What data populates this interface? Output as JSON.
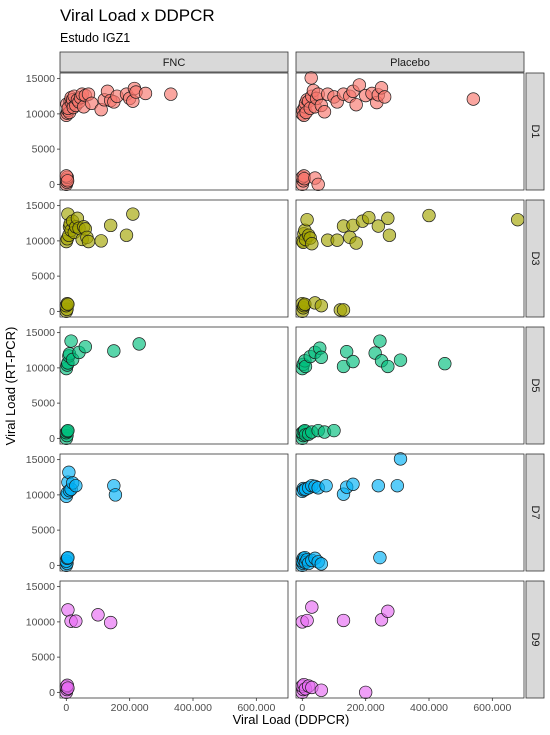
{
  "chart_data": {
    "type": "scatter",
    "title": "Viral Load x DDPCR",
    "subtitle": "Estudo IGZ1",
    "xlabel": "Viral Load (DDPCR)",
    "ylabel": "Viral Load (RT-PCR)",
    "xlim": [
      -20000,
      700000
    ],
    "ylim": [
      -800,
      15800
    ],
    "x_ticks": [
      0,
      200000,
      400000,
      600000
    ],
    "x_tick_labels": [
      "0",
      "200.000",
      "400.000",
      "600.000"
    ],
    "y_ticks": [
      0,
      5000,
      10000,
      15000
    ],
    "y_tick_labels": [
      "0",
      "5000",
      "10000",
      "15000"
    ],
    "columns": [
      "FNC",
      "Placebo"
    ],
    "rows": [
      {
        "label": "D1",
        "color": "#F8766D"
      },
      {
        "label": "D3",
        "color": "#A3A500"
      },
      {
        "label": "D5",
        "color": "#00BF7D"
      },
      {
        "label": "D7",
        "color": "#00B0F6"
      },
      {
        "label": "D9",
        "color": "#E76BF3"
      }
    ],
    "grid": false,
    "legend": "none",
    "panels": [
      {
        "row": "D1",
        "column": "FNC",
        "points": [
          [
            0,
            0
          ],
          [
            2000,
            300
          ],
          [
            1000,
            700
          ],
          [
            3000,
            1000
          ],
          [
            0,
            1200
          ],
          [
            4000,
            500
          ],
          [
            0,
            9800
          ],
          [
            3000,
            10100
          ],
          [
            5000,
            10500
          ],
          [
            8000,
            11000
          ],
          [
            2000,
            11400
          ],
          [
            10000,
            10200
          ],
          [
            12000,
            11800
          ],
          [
            15000,
            12300
          ],
          [
            6000,
            10800
          ],
          [
            18000,
            11500
          ],
          [
            20000,
            12000
          ],
          [
            22000,
            10900
          ],
          [
            25000,
            12500
          ],
          [
            30000,
            11200
          ],
          [
            35000,
            12000
          ],
          [
            40000,
            11700
          ],
          [
            45000,
            12300
          ],
          [
            50000,
            12800
          ],
          [
            55000,
            11000
          ],
          [
            60000,
            12600
          ],
          [
            70000,
            12800
          ],
          [
            80000,
            11500
          ],
          [
            110000,
            10600
          ],
          [
            120000,
            12000
          ],
          [
            130000,
            13200
          ],
          [
            140000,
            11900
          ],
          [
            150000,
            11700
          ],
          [
            160000,
            12500
          ],
          [
            190000,
            12800
          ],
          [
            200000,
            12200
          ],
          [
            210000,
            11800
          ],
          [
            215000,
            13600
          ],
          [
            220000,
            13100
          ],
          [
            250000,
            12900
          ],
          [
            330000,
            12800
          ]
        ]
      },
      {
        "row": "D1",
        "column": "Placebo",
        "points": [
          [
            0,
            0
          ],
          [
            3000,
            500
          ],
          [
            0,
            1000
          ],
          [
            5000,
            1200
          ],
          [
            6000,
            800
          ],
          [
            40000,
            900
          ],
          [
            50000,
            0
          ],
          [
            0,
            10000
          ],
          [
            2000,
            10500
          ],
          [
            5000,
            9800
          ],
          [
            8000,
            11000
          ],
          [
            10000,
            11500
          ],
          [
            12000,
            10200
          ],
          [
            15000,
            12000
          ],
          [
            20000,
            11800
          ],
          [
            25000,
            10800
          ],
          [
            28000,
            15100
          ],
          [
            30000,
            12500
          ],
          [
            35000,
            13300
          ],
          [
            40000,
            11000
          ],
          [
            45000,
            12200
          ],
          [
            50000,
            12800
          ],
          [
            60000,
            11200
          ],
          [
            70000,
            10300
          ],
          [
            80000,
            12800
          ],
          [
            100000,
            12400
          ],
          [
            110000,
            11700
          ],
          [
            130000,
            12800
          ],
          [
            150000,
            12500
          ],
          [
            160000,
            13200
          ],
          [
            170000,
            11300
          ],
          [
            180000,
            14100
          ],
          [
            200000,
            12600
          ],
          [
            220000,
            12900
          ],
          [
            235000,
            11600
          ],
          [
            240000,
            12700
          ],
          [
            250000,
            13700
          ],
          [
            260000,
            12400
          ],
          [
            540000,
            12100
          ]
        ]
      },
      {
        "row": "D3",
        "column": "FNC",
        "points": [
          [
            0,
            0
          ],
          [
            2000,
            300
          ],
          [
            0,
            800
          ],
          [
            3000,
            1100
          ],
          [
            5000,
            1000
          ],
          [
            0,
            9900
          ],
          [
            3000,
            10300
          ],
          [
            5000,
            13800
          ],
          [
            8000,
            10800
          ],
          [
            10000,
            12000
          ],
          [
            12000,
            12400
          ],
          [
            15000,
            11500
          ],
          [
            20000,
            12800
          ],
          [
            25000,
            11200
          ],
          [
            30000,
            12000
          ],
          [
            35000,
            13200
          ],
          [
            40000,
            11800
          ],
          [
            50000,
            10200
          ],
          [
            55000,
            12000
          ],
          [
            60000,
            11700
          ],
          [
            65000,
            10500
          ],
          [
            70000,
            9900
          ],
          [
            110000,
            10000
          ],
          [
            140000,
            12200
          ],
          [
            190000,
            10800
          ],
          [
            210000,
            13800
          ]
        ]
      },
      {
        "row": "D3",
        "column": "Placebo",
        "points": [
          [
            0,
            0
          ],
          [
            3000,
            500
          ],
          [
            0,
            1100
          ],
          [
            5000,
            800
          ],
          [
            8000,
            1000
          ],
          [
            40000,
            1200
          ],
          [
            60000,
            800
          ],
          [
            120000,
            200
          ],
          [
            130000,
            200
          ],
          [
            0,
            10000
          ],
          [
            3000,
            9800
          ],
          [
            5000,
            11000
          ],
          [
            8000,
            11500
          ],
          [
            10000,
            10200
          ],
          [
            15000,
            13000
          ],
          [
            20000,
            10800
          ],
          [
            25000,
            10400
          ],
          [
            30000,
            9600
          ],
          [
            80000,
            10100
          ],
          [
            110000,
            10100
          ],
          [
            130000,
            12100
          ],
          [
            150000,
            10500
          ],
          [
            160000,
            12200
          ],
          [
            170000,
            9700
          ],
          [
            190000,
            12800
          ],
          [
            210000,
            13300
          ],
          [
            240000,
            12100
          ],
          [
            270000,
            13200
          ],
          [
            275000,
            10800
          ],
          [
            400000,
            13600
          ],
          [
            680000,
            13000
          ]
        ]
      },
      {
        "row": "D5",
        "column": "FNC",
        "points": [
          [
            0,
            0
          ],
          [
            2000,
            400
          ],
          [
            0,
            800
          ],
          [
            3000,
            1000
          ],
          [
            5000,
            1100
          ],
          [
            0,
            9900
          ],
          [
            3000,
            10400
          ],
          [
            5000,
            10700
          ],
          [
            8000,
            11700
          ],
          [
            10000,
            12000
          ],
          [
            15000,
            13800
          ],
          [
            20000,
            11200
          ],
          [
            40000,
            12200
          ],
          [
            60000,
            13000
          ],
          [
            150000,
            12400
          ],
          [
            230000,
            13400
          ]
        ]
      },
      {
        "row": "D5",
        "column": "Placebo",
        "points": [
          [
            0,
            0
          ],
          [
            3000,
            400
          ],
          [
            0,
            800
          ],
          [
            5000,
            1000
          ],
          [
            8000,
            1100
          ],
          [
            10000,
            500
          ],
          [
            20000,
            600
          ],
          [
            30000,
            900
          ],
          [
            50000,
            1100
          ],
          [
            70000,
            900
          ],
          [
            100000,
            1100
          ],
          [
            0,
            9900
          ],
          [
            3000,
            10500
          ],
          [
            8000,
            11000
          ],
          [
            10000,
            10200
          ],
          [
            25000,
            11600
          ],
          [
            40000,
            12200
          ],
          [
            55000,
            12800
          ],
          [
            60000,
            11500
          ],
          [
            130000,
            10200
          ],
          [
            140000,
            12300
          ],
          [
            160000,
            10900
          ],
          [
            230000,
            12100
          ],
          [
            245000,
            13800
          ],
          [
            250000,
            11000
          ],
          [
            270000,
            10200
          ],
          [
            310000,
            11100
          ],
          [
            450000,
            10600
          ]
        ]
      },
      {
        "row": "D7",
        "column": "FNC",
        "points": [
          [
            0,
            0
          ],
          [
            2000,
            300
          ],
          [
            0,
            600
          ],
          [
            3000,
            1000
          ],
          [
            5000,
            1100
          ],
          [
            0,
            9800
          ],
          [
            3000,
            10300
          ],
          [
            5000,
            11800
          ],
          [
            8000,
            13200
          ],
          [
            10000,
            10600
          ],
          [
            15000,
            10800
          ],
          [
            20000,
            11700
          ],
          [
            30000,
            11300
          ],
          [
            150000,
            11300
          ],
          [
            155000,
            10000
          ]
        ]
      },
      {
        "row": "D7",
        "column": "Placebo",
        "points": [
          [
            0,
            0
          ],
          [
            2000,
            300
          ],
          [
            0,
            600
          ],
          [
            3000,
            1000
          ],
          [
            5000,
            700
          ],
          [
            8000,
            1100
          ],
          [
            10000,
            400
          ],
          [
            15000,
            800
          ],
          [
            20000,
            300
          ],
          [
            30000,
            700
          ],
          [
            40000,
            1000
          ],
          [
            50000,
            500
          ],
          [
            60000,
            200
          ],
          [
            0,
            10500
          ],
          [
            3000,
            10900
          ],
          [
            5000,
            10700
          ],
          [
            10000,
            10800
          ],
          [
            20000,
            11000
          ],
          [
            30000,
            11300
          ],
          [
            40000,
            11200
          ],
          [
            50000,
            11000
          ],
          [
            75000,
            11300
          ],
          [
            130000,
            10100
          ],
          [
            140000,
            11100
          ],
          [
            160000,
            11500
          ],
          [
            240000,
            11300
          ],
          [
            245000,
            1100
          ],
          [
            300000,
            11300
          ],
          [
            310000,
            15100
          ]
        ]
      },
      {
        "row": "D9",
        "column": "FNC",
        "points": [
          [
            0,
            0
          ],
          [
            2000,
            400
          ],
          [
            0,
            800
          ],
          [
            3000,
            1000
          ],
          [
            5000,
            600
          ],
          [
            5000,
            11700
          ],
          [
            15000,
            10100
          ],
          [
            30000,
            10100
          ],
          [
            100000,
            11000
          ],
          [
            140000,
            9900
          ]
        ]
      },
      {
        "row": "D9",
        "column": "Placebo",
        "points": [
          [
            0,
            0
          ],
          [
            3000,
            400
          ],
          [
            0,
            900
          ],
          [
            5000,
            1100
          ],
          [
            10000,
            500
          ],
          [
            20000,
            900
          ],
          [
            30000,
            700
          ],
          [
            60000,
            300
          ],
          [
            0,
            10000
          ],
          [
            15000,
            10200
          ],
          [
            30000,
            12100
          ],
          [
            130000,
            10200
          ],
          [
            200000,
            0
          ],
          [
            250000,
            10300
          ],
          [
            270000,
            11500
          ]
        ]
      }
    ]
  }
}
